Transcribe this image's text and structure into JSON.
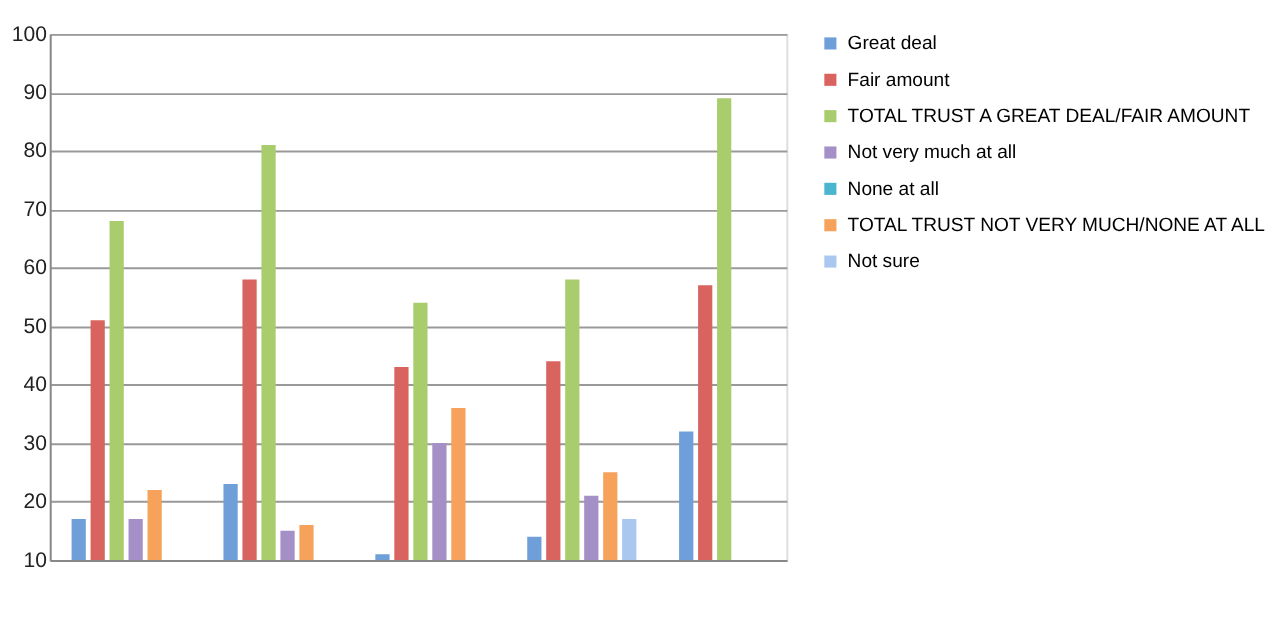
{
  "chart_data": {
    "type": "bar",
    "categories": [
      null,
      null,
      null,
      null,
      null
    ],
    "series": [
      {
        "name": "Great deal",
        "color": "#6f9fd8",
        "values": [
          17,
          23,
          11,
          14,
          32
        ]
      },
      {
        "name": "Fair amount",
        "color": "#d9645f",
        "values": [
          51,
          58,
          43,
          44,
          57
        ]
      },
      {
        "name": "TOTAL TRUST A GREAT DEAL/FAIR AMOUNT",
        "color": "#a9cd6d",
        "values": [
          68,
          81,
          54,
          58,
          89
        ]
      },
      {
        "name": "Not very much at all",
        "color": "#a58fc7",
        "values": [
          17,
          15,
          30,
          21,
          null
        ]
      },
      {
        "name": "None at all",
        "color": "#4bb5cf",
        "values": [
          null,
          null,
          null,
          null,
          null
        ]
      },
      {
        "name": "TOTAL TRUST NOT VERY MUCH/NONE AT ALL",
        "color": "#f6a25b",
        "values": [
          22,
          16,
          36,
          25,
          null
        ]
      },
      {
        "name": "Not sure",
        "color": "#a9c7ef",
        "values": [
          null,
          null,
          null,
          17,
          null
        ]
      }
    ],
    "ylim": [
      10,
      100
    ],
    "yticks": [
      10,
      20,
      30,
      40,
      50,
      60,
      70,
      80,
      90,
      100
    ],
    "grid": "y",
    "legend": "right",
    "tick_labels": "y"
  }
}
